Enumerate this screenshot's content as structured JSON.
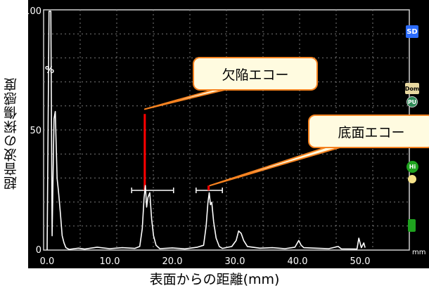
{
  "chart_data": {
    "type": "line",
    "ylabel": "超音波の探傷感度",
    "xlabel": "表面からの距離(mm)",
    "x_unit": "mm",
    "xlim": [
      0,
      50
    ],
    "ylim": [
      0,
      100
    ],
    "x_ticks": [
      "0.0",
      "10.0",
      "20.0",
      "30.0",
      "40.0",
      "50.0"
    ],
    "y_ticks": [
      "0",
      "50",
      "100"
    ],
    "y_unit": "%",
    "grid": true,
    "series": [
      {
        "color": "#ffffff",
        "points": [
          [
            0,
            0
          ],
          [
            0.3,
            100
          ],
          [
            0.6,
            100
          ],
          [
            0.8,
            6
          ],
          [
            1.1,
            55
          ],
          [
            1.3,
            58
          ],
          [
            1.6,
            30
          ],
          [
            1.8,
            25
          ],
          [
            2.1,
            16
          ],
          [
            2.4,
            6
          ],
          [
            2.7,
            3
          ],
          [
            3.0,
            1
          ],
          [
            3.5,
            0.3
          ],
          [
            5,
            0.8
          ],
          [
            6,
            0.4
          ],
          [
            8,
            1.2
          ],
          [
            10,
            0.6
          ],
          [
            12,
            1.0
          ],
          [
            14,
            0.7
          ],
          [
            14.8,
            1.5
          ],
          [
            15.2,
            9
          ],
          [
            15.5,
            22
          ],
          [
            15.7,
            27
          ],
          [
            15.9,
            18
          ],
          [
            16.1,
            22
          ],
          [
            16.4,
            24
          ],
          [
            16.7,
            13
          ],
          [
            17.0,
            6
          ],
          [
            17.4,
            2
          ],
          [
            18,
            0.6
          ],
          [
            20,
            0.9
          ],
          [
            22,
            0.5
          ],
          [
            24,
            1.2
          ],
          [
            25.0,
            2
          ],
          [
            25.4,
            10
          ],
          [
            25.7,
            20
          ],
          [
            25.9,
            24
          ],
          [
            26.1,
            19
          ],
          [
            26.3,
            20
          ],
          [
            26.6,
            12
          ],
          [
            27.0,
            5
          ],
          [
            27.5,
            1.5
          ],
          [
            28,
            0.7
          ],
          [
            29.5,
            1.5
          ],
          [
            30.2,
            4
          ],
          [
            30.6,
            8
          ],
          [
            31.0,
            7
          ],
          [
            31.4,
            4
          ],
          [
            32,
            1.5
          ],
          [
            34,
            0.8
          ],
          [
            36,
            1.0
          ],
          [
            38,
            0.6
          ],
          [
            39.6,
            1.2
          ],
          [
            40.2,
            4
          ],
          [
            40.6,
            2
          ],
          [
            41,
            1
          ],
          [
            43,
            0.8
          ],
          [
            45,
            0.6
          ],
          [
            46.5,
            1.5
          ],
          [
            47,
            0.5
          ],
          [
            49.5,
            0.4
          ],
          [
            49.8,
            5
          ],
          [
            50.2,
            1
          ],
          [
            50.6,
            3
          ],
          [
            50.8,
            1
          ]
        ]
      }
    ],
    "gates": [
      {
        "color": "#ff0000",
        "x": 15.6,
        "max": 57,
        "level": 25
      },
      {
        "color": "#ff0000",
        "x": 25.8,
        "max": 27,
        "level": 25
      }
    ],
    "gate_bars": [
      {
        "x_start": 13.5,
        "x_end": 20.2,
        "level": 25
      },
      {
        "x_start": 23.8,
        "x_end": 28.0,
        "level": 25
      }
    ],
    "annotations": [
      {
        "text": "欠陥エコー",
        "target_x": 15.6,
        "target_y": 59
      },
      {
        "text": "底面エコー",
        "target_x": 26.0,
        "target_y": 27
      }
    ]
  },
  "side_icons": [
    {
      "name": "sd",
      "label": "SD",
      "color": "#2b6cff"
    },
    {
      "name": "dom",
      "label": "Dom",
      "color": "#e8d8a0"
    },
    {
      "name": "pu",
      "label": "PU",
      "color": "#2e8b57"
    },
    {
      "name": "hi",
      "label": "Hi",
      "color": "#1fa31f"
    },
    {
      "name": "bulb",
      "label": "",
      "color": "#f5e28a"
    },
    {
      "name": "battery",
      "label": "",
      "color": "#1fa31f"
    }
  ]
}
